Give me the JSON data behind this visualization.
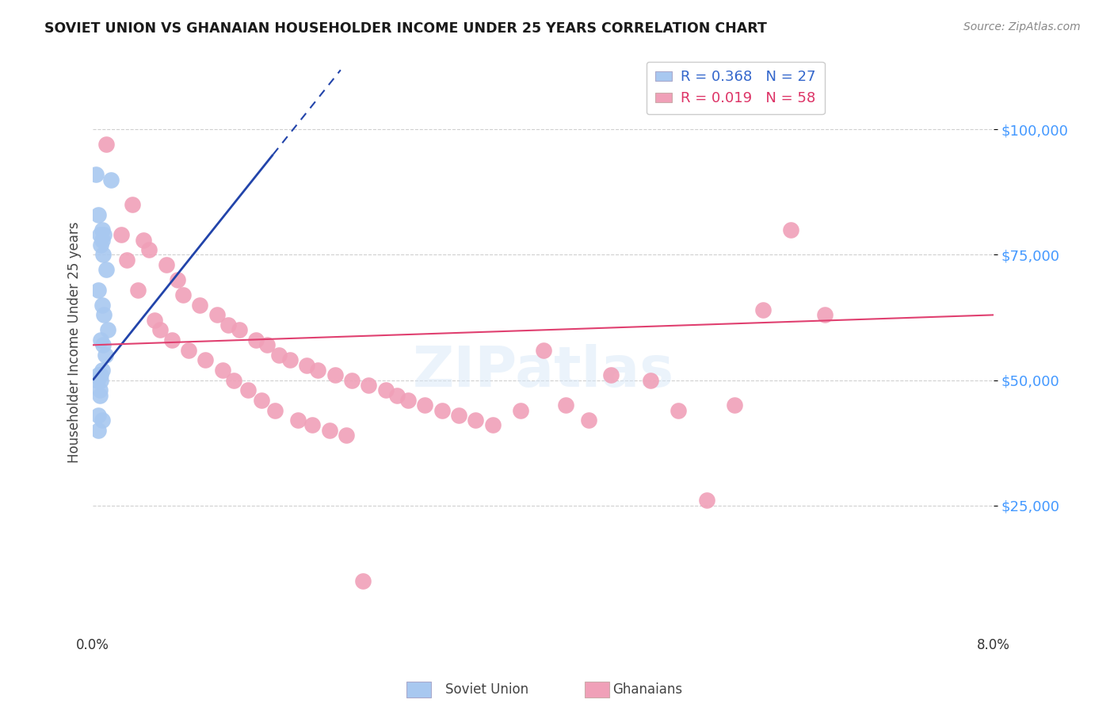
{
  "title": "SOVIET UNION VS GHANAIAN HOUSEHOLDER INCOME UNDER 25 YEARS CORRELATION CHART",
  "source": "Source: ZipAtlas.com",
  "ylabel": "Householder Income Under 25 years",
  "xlim": [
    0.0,
    0.08
  ],
  "ylim": [
    0,
    115000
  ],
  "yticks": [
    25000,
    50000,
    75000,
    100000
  ],
  "ytick_labels": [
    "$25,000",
    "$50,000",
    "$75,000",
    "$100,000"
  ],
  "grid_color": "#d0d0d0",
  "background_color": "#ffffff",
  "soviet_color": "#a8c8f0",
  "soviet_line_color": "#2244aa",
  "ghanaian_color": "#f0a0b8",
  "ghanaian_line_color": "#e04070",
  "soviet_R": 0.368,
  "soviet_N": 27,
  "ghanaian_R": 0.019,
  "ghanaian_N": 58,
  "soviet_x": [
    0.0003,
    0.0016,
    0.0005,
    0.0008,
    0.001,
    0.0006,
    0.0008,
    0.0007,
    0.0009,
    0.0012,
    0.0005,
    0.0008,
    0.001,
    0.0013,
    0.0007,
    0.0009,
    0.0011,
    0.0008,
    0.0005,
    0.0007,
    0.0004,
    0.0007,
    0.0006,
    0.0006,
    0.0005,
    0.0008,
    0.0005
  ],
  "soviet_y": [
    91000,
    90000,
    83000,
    80000,
    79000,
    79000,
    78000,
    77000,
    75000,
    72000,
    68000,
    65000,
    63000,
    60000,
    58000,
    57000,
    55000,
    52000,
    51000,
    51000,
    50000,
    50000,
    48000,
    47000,
    43000,
    42000,
    40000
  ],
  "ghanaian_x": [
    0.0012,
    0.0035,
    0.0045,
    0.005,
    0.0065,
    0.0075,
    0.008,
    0.0095,
    0.011,
    0.012,
    0.013,
    0.0145,
    0.0155,
    0.0165,
    0.0175,
    0.019,
    0.02,
    0.0215,
    0.023,
    0.0245,
    0.026,
    0.027,
    0.028,
    0.0295,
    0.031,
    0.0325,
    0.034,
    0.0355,
    0.038,
    0.04,
    0.042,
    0.044,
    0.046,
    0.0495,
    0.052,
    0.0545,
    0.057,
    0.0595,
    0.062,
    0.065,
    0.0025,
    0.003,
    0.004,
    0.0055,
    0.006,
    0.007,
    0.0085,
    0.01,
    0.0115,
    0.0125,
    0.0138,
    0.015,
    0.0162,
    0.0182,
    0.0195,
    0.021,
    0.0225,
    0.024
  ],
  "ghanaian_y": [
    97000,
    85000,
    78000,
    76000,
    73000,
    70000,
    67000,
    65000,
    63000,
    61000,
    60000,
    58000,
    57000,
    55000,
    54000,
    53000,
    52000,
    51000,
    50000,
    49000,
    48000,
    47000,
    46000,
    45000,
    44000,
    43000,
    42000,
    41000,
    44000,
    56000,
    45000,
    42000,
    51000,
    50000,
    44000,
    26000,
    45000,
    64000,
    80000,
    63000,
    79000,
    74000,
    68000,
    62000,
    60000,
    58000,
    56000,
    54000,
    52000,
    50000,
    48000,
    46000,
    44000,
    42000,
    41000,
    40000,
    39000,
    10000
  ],
  "sov_line_x0": 0.0,
  "sov_line_x1": 0.016,
  "sov_line_x2": 0.022,
  "sov_line_y0": 50000,
  "sov_line_y1": 95000,
  "gha_line_x0": 0.0,
  "gha_line_x1": 0.08,
  "gha_line_y0": 57000,
  "gha_line_y1": 63000
}
